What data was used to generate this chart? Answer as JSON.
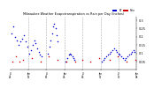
{
  "title": "Milwaukee Weather Evapotranspiration vs Rain per Day (Inches)",
  "et_color": "#0000cc",
  "rain_color": "#cc0000",
  "background": "#ffffff",
  "ylim": [
    0,
    0.32
  ],
  "ytick_labels": [
    "0.05",
    "0.1",
    "0.15",
    "0.2",
    "0.25",
    "0.3"
  ],
  "ytick_vals": [
    0.05,
    0.1,
    0.15,
    0.2,
    0.25,
    0.3
  ],
  "legend_labels": [
    "ET",
    "Rain"
  ],
  "legend_colors": [
    "#0000cc",
    "#cc0000"
  ],
  "num_points": 210,
  "vline_positions": [
    30,
    60,
    90,
    120,
    150,
    180
  ],
  "xtick_positions": [
    0,
    30,
    60,
    90,
    120,
    150,
    180,
    210
  ],
  "xtick_labels": [
    "Jul\n04",
    "Jan\n05",
    "Jul\n05",
    "Jan\n06",
    "Jul\n06",
    "Jan\n07",
    "Jul\n07",
    "Jan\n08"
  ],
  "et_x": [
    2,
    5,
    8,
    11,
    14,
    17,
    20,
    23,
    26,
    28,
    32,
    35,
    37,
    40,
    42,
    45,
    47,
    49,
    52,
    62,
    65,
    67,
    69,
    71,
    73,
    75,
    77,
    79,
    92,
    95,
    97,
    99,
    101,
    103,
    105,
    107,
    152,
    155,
    157,
    160,
    162,
    165,
    167,
    170,
    172,
    175,
    177,
    180,
    182,
    185,
    187,
    190,
    192,
    195,
    197,
    200,
    202,
    205,
    207
  ],
  "et_y": [
    0.22,
    0.26,
    0.2,
    0.18,
    0.15,
    0.17,
    0.19,
    0.21,
    0.17,
    0.14,
    0.1,
    0.12,
    0.15,
    0.18,
    0.16,
    0.13,
    0.11,
    0.09,
    0.08,
    0.1,
    0.14,
    0.18,
    0.22,
    0.26,
    0.28,
    0.25,
    0.21,
    0.17,
    0.05,
    0.07,
    0.09,
    0.1,
    0.09,
    0.08,
    0.07,
    0.06,
    0.05,
    0.06,
    0.07,
    0.08,
    0.09,
    0.1,
    0.11,
    0.12,
    0.13,
    0.12,
    0.11,
    0.1,
    0.09,
    0.08,
    0.07,
    0.06,
    0.07,
    0.08,
    0.09,
    0.1,
    0.11,
    0.12,
    0.11
  ],
  "rain_x": [
    3,
    9,
    15,
    21,
    36,
    50,
    63,
    78,
    93,
    108,
    120,
    133,
    148,
    165,
    178,
    193,
    208
  ],
  "rain_y": [
    0.05,
    0.08,
    0.05,
    0.06,
    0.07,
    0.05,
    0.08,
    0.06,
    0.05,
    0.05,
    0.06,
    0.05,
    0.07,
    0.06,
    0.08,
    0.05,
    0.06
  ]
}
